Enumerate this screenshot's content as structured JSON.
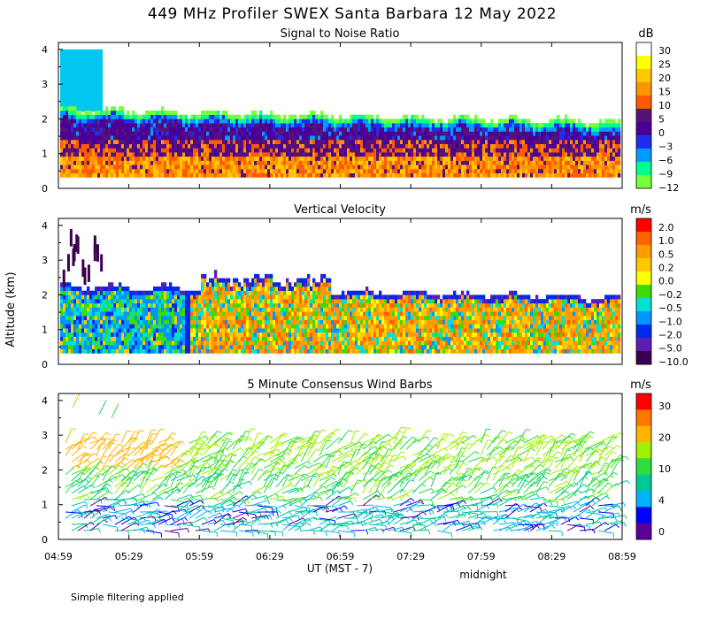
{
  "title": "449 MHz Profiler SWEX Santa Barbara 12 May 2022",
  "ylabel": "Altitude (km)",
  "xlabel": "UT  (MST - 7)",
  "midnight_label": "midnight",
  "footnote": "Simple filtering applied",
  "time_ticks": [
    "04:59",
    "05:29",
    "05:59",
    "06:29",
    "06:59",
    "07:29",
    "07:59",
    "08:29",
    "08:59"
  ],
  "altitude_ticks": [
    "0",
    "1",
    "2",
    "3",
    "4"
  ],
  "chart_data": [
    {
      "type": "heatmap",
      "title": "Signal to Noise Ratio",
      "units": "dB",
      "x": "time (UT)",
      "xlim_hours": [
        4.983,
        8.983
      ],
      "ylim_km": [
        0,
        4.2
      ],
      "colorbar_labels": [
        "30",
        "25",
        "20",
        "15",
        "10",
        "5",
        "0",
        "−3",
        "−6",
        "−9",
        "−12"
      ],
      "colorbar_colors": [
        "#ffffff",
        "#ffff00",
        "#ffc800",
        "#ff9600",
        "#ff5a00",
        "#55127a",
        "#4a0096",
        "#1e2df0",
        "#009bff",
        "#00ff8c",
        "#78ff3c"
      ],
      "data_top_km_start": 4.0,
      "data_top_km_typical": 2.2,
      "data_top_km_end": 1.9
    },
    {
      "type": "heatmap",
      "title": "Vertical Velocity",
      "units": "m/s",
      "xlim_hours": [
        4.983,
        8.983
      ],
      "ylim_km": [
        0,
        4.2
      ],
      "colorbar_labels": [
        "2.0",
        "1.0",
        "0.5",
        "0.2",
        "0.0",
        "−0.2",
        "−0.5",
        "−1.0",
        "−2.0",
        "−5.0",
        "−10.0"
      ],
      "colorbar_colors": [
        "#ff0000",
        "#ff6400",
        "#ff9b00",
        "#ffc800",
        "#ffff00",
        "#3cdc00",
        "#00e1d2",
        "#0096ff",
        "#0028f0",
        "#5a1eb4",
        "#3c0050"
      ],
      "data_top_km_typical": 2.2,
      "data_top_km_end": 1.9
    },
    {
      "type": "scatter",
      "title": "5 Minute Consensus Wind Barbs",
      "units": "m/s",
      "xlim_hours": [
        4.983,
        8.983
      ],
      "ylim_km": [
        0,
        4.2
      ],
      "colorbar_labels": [
        "30",
        "20",
        "10",
        "4",
        "0"
      ],
      "colorbar_colors": [
        "#ff0000",
        "#ff7800",
        "#ffb400",
        "#a0f000",
        "#2cdc40",
        "#00c896",
        "#00b4ff",
        "#0000ff",
        "#5a0096"
      ],
      "barb_height_range_km": [
        0.2,
        2.8
      ],
      "sparse_upper_barbs_km": [
        3.6,
        4.1
      ]
    }
  ],
  "colors": {
    "axis": "#000000",
    "background": "#ffffff"
  }
}
